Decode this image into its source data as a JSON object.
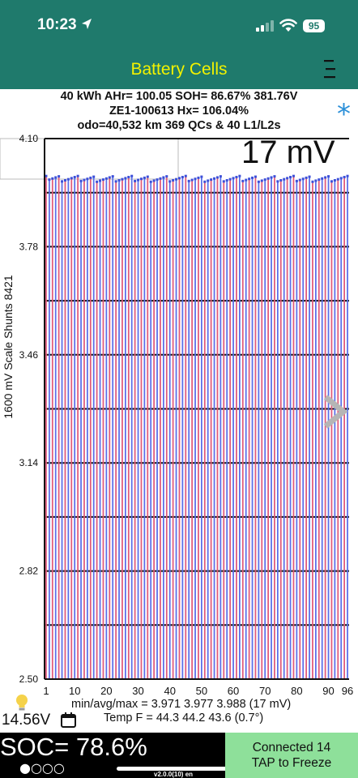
{
  "status_bar": {
    "time": "10:23",
    "battery_level": "95"
  },
  "app_bar": {
    "title": "Battery Cells"
  },
  "header": {
    "line1": "40 kWh  AHr= 100.05  SOH= 86.67%   381.76V",
    "line2": "ZE1-100613   Hx= 106.04%",
    "line3": "odo=40,532 km 369 QCs & 40 L1/L2s"
  },
  "side_label": "1600 mV Scale   Shunts 8421",
  "spread_display": "17 mV",
  "chart_data": {
    "type": "bar",
    "ylim": [
      2.5,
      4.1
    ],
    "yticks": [
      "4.10",
      "3.78",
      "3.46",
      "3.14",
      "2.82",
      "2.50"
    ],
    "xticks": [
      "1",
      "10",
      "20",
      "30",
      "40",
      "50",
      "60",
      "70",
      "80",
      "90",
      "96"
    ],
    "cell_count": 96,
    "min_voltage": 3.971,
    "avg_voltage": 3.977,
    "max_voltage": 3.988,
    "grid": true,
    "colors": {
      "odd": "#e05a7a",
      "even": "#5a6ee8",
      "shunt": "#3c4fd8"
    }
  },
  "stats": {
    "minavgmax": "min/avg/max = 3.971 3.977 3.988  (17 mV)",
    "temp": "Temp F = 44.3  44.2  43.6  (0.7°)"
  },
  "pack_voltage": "14.56V",
  "soc": "SOC= 78.6%",
  "version": "v2.0.0(10) en",
  "connection": {
    "line1": "Connected 14",
    "line2": "TAP to Freeze"
  }
}
